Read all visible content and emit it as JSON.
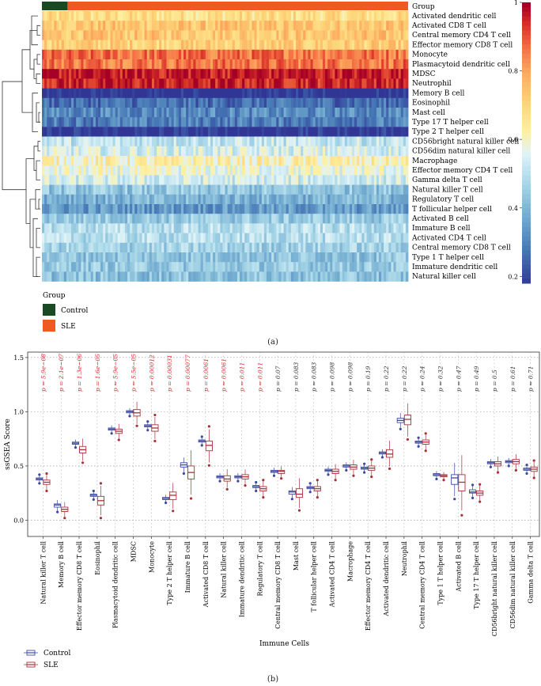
{
  "panel_a": {
    "label": "(a)",
    "group_row_label": "Group",
    "rows": [
      "Activated dendritic cell",
      "Activated CD8 T cell",
      "Central memory CD4 T cell",
      "Effector memory CD8 T cell",
      "Monocyte",
      "Plasmacytoid dendritic cell",
      "MDSC",
      "Neutrophil",
      "Memory B cell",
      "Eosinophil",
      "Mast cell",
      "Type 17 T helper cell",
      "Type 2 T helper cell",
      "CD56bright natural killer cell",
      "CD56dim natural killer cell",
      "Macrophage",
      "Effector memory CD4 T cell",
      "Gamma delta T cell",
      "Natural killer T cell",
      "Regulatory T cell",
      "T follicular helper cell",
      "Activated B cell",
      "Immature B cell",
      "Activated CD4 T cell",
      "Central memory CD8 T cell",
      "Type 1 T helper cell",
      "Immature dendritic cell",
      "Natural killer cell"
    ],
    "row_mean_levels": [
      0.68,
      0.74,
      0.74,
      0.72,
      0.87,
      0.87,
      0.97,
      0.96,
      0.16,
      0.27,
      0.32,
      0.3,
      0.17,
      0.52,
      0.55,
      0.62,
      0.58,
      0.54,
      0.44,
      0.4,
      0.35,
      0.45,
      0.5,
      0.5,
      0.47,
      0.44,
      0.45,
      0.43
    ],
    "colorbar": {
      "ticks": [
        "1",
        "0.8",
        "0.6",
        "0.4",
        "0.2"
      ],
      "values": [
        1,
        0.8,
        0.6,
        0.4,
        0.2
      ],
      "range": [
        0.18,
        1.0
      ]
    },
    "legend": {
      "title": "Group",
      "items": [
        {
          "name": "Control",
          "color": "#1a4a24"
        },
        {
          "name": "SLE",
          "color": "#ef5a20"
        }
      ]
    },
    "control_fraction": 0.07
  },
  "panel_b": {
    "label": "(b)",
    "ylabel": "ssGSEA Score",
    "xlabel": "Immune Cells",
    "legend": [
      {
        "name": "Control",
        "color": "#3d4aa0"
      },
      {
        "name": "SLE",
        "color": "#a8323a"
      }
    ]
  },
  "chart_data": {
    "type": "box",
    "ylabel": "ssGSEA Score",
    "xlabel": "Immune Cells",
    "ylim": [
      -0.15,
      1.55
    ],
    "yticks": [
      0.0,
      0.5,
      1.0,
      1.5
    ],
    "ytick_labels": [
      "0.0",
      "0.5",
      "1.0",
      "1.5"
    ],
    "categories": [
      "Natural killer T cell",
      "Memory B cell",
      "Effector memory CD8 T cell",
      "Eosinophil",
      "Plasmacytoid dendritic cell",
      "MDSC",
      "Monocyte",
      "Type 2 T helper cell",
      "Immature B cell",
      "Activated CD8 T cell",
      "Natural killer cell",
      "Immature dendritic cell",
      "Regulatory T cell",
      "Central memory CD8 T cell",
      "Mast cell",
      "T follicular helper cell",
      "Activated CD4 T cell",
      "Macrophage",
      "Effector memory CD4 T cell",
      "Activated dendritic cell",
      "Neutrophil",
      "Central memory CD4 T cell",
      "Type 1 T helper cell",
      "Activated B cell",
      "Type 17 T helper cell",
      "CD56bright natural killer cell",
      "CD56dim natural killer cell",
      "Gamma delta T cell"
    ],
    "p_labels": [
      "p = 5.9e−08",
      "p = 2.1e−07",
      "p = 1.3e−06",
      "p = 1.6e−05",
      "p = 5.9e−05",
      "p = 5.5e−05",
      "p = 0.00012",
      "p = 0.00031",
      "p = 0.00077",
      "p = 0.0061",
      "p = 0.0061",
      "p = 0.011",
      "p = 0.011",
      "p = 0.07",
      "p = 0.083",
      "p = 0.083",
      "p = 0.098",
      "p = 0.098",
      "p = 0.19",
      "p = 0.22",
      "p = 0.22",
      "p = 0.24",
      "p = 0.32",
      "p = 0.47",
      "p = 0.49",
      "p = 0.5",
      "p = 0.61",
      "p = 0.71"
    ],
    "significant_count": 13,
    "series": [
      {
        "name": "Control",
        "color": "#3d4aa0",
        "medians": [
          0.38,
          0.14,
          0.71,
          0.23,
          0.84,
          1.0,
          0.87,
          0.2,
          0.51,
          0.73,
          0.4,
          0.4,
          0.31,
          0.45,
          0.26,
          0.3,
          0.46,
          0.5,
          0.48,
          0.62,
          0.92,
          0.72,
          0.42,
          0.39,
          0.26,
          0.53,
          0.54,
          0.47
        ],
        "q1": [
          0.37,
          0.12,
          0.7,
          0.22,
          0.83,
          0.99,
          0.86,
          0.19,
          0.49,
          0.72,
          0.39,
          0.39,
          0.3,
          0.44,
          0.24,
          0.29,
          0.45,
          0.49,
          0.47,
          0.61,
          0.9,
          0.71,
          0.41,
          0.33,
          0.25,
          0.52,
          0.53,
          0.46
        ],
        "q3": [
          0.39,
          0.15,
          0.72,
          0.24,
          0.85,
          1.01,
          0.88,
          0.21,
          0.53,
          0.74,
          0.41,
          0.41,
          0.32,
          0.46,
          0.27,
          0.31,
          0.47,
          0.51,
          0.49,
          0.63,
          0.94,
          0.73,
          0.43,
          0.42,
          0.28,
          0.54,
          0.55,
          0.48
        ]
      },
      {
        "name": "SLE",
        "color": "#a8323a",
        "medians": [
          0.35,
          0.1,
          0.65,
          0.18,
          0.82,
          0.99,
          0.85,
          0.23,
          0.44,
          0.69,
          0.38,
          0.4,
          0.29,
          0.45,
          0.24,
          0.29,
          0.45,
          0.49,
          0.48,
          0.61,
          0.93,
          0.72,
          0.41,
          0.35,
          0.25,
          0.52,
          0.54,
          0.47
        ],
        "q1": [
          0.33,
          0.08,
          0.62,
          0.14,
          0.8,
          0.96,
          0.82,
          0.19,
          0.38,
          0.64,
          0.36,
          0.38,
          0.27,
          0.43,
          0.21,
          0.27,
          0.43,
          0.47,
          0.46,
          0.58,
          0.88,
          0.7,
          0.4,
          0.27,
          0.23,
          0.5,
          0.52,
          0.45
        ],
        "q3": [
          0.37,
          0.12,
          0.68,
          0.22,
          0.84,
          1.02,
          0.88,
          0.26,
          0.5,
          0.73,
          0.41,
          0.42,
          0.31,
          0.46,
          0.29,
          0.31,
          0.47,
          0.51,
          0.5,
          0.65,
          0.97,
          0.74,
          0.42,
          0.42,
          0.27,
          0.54,
          0.56,
          0.49
        ]
      }
    ]
  }
}
